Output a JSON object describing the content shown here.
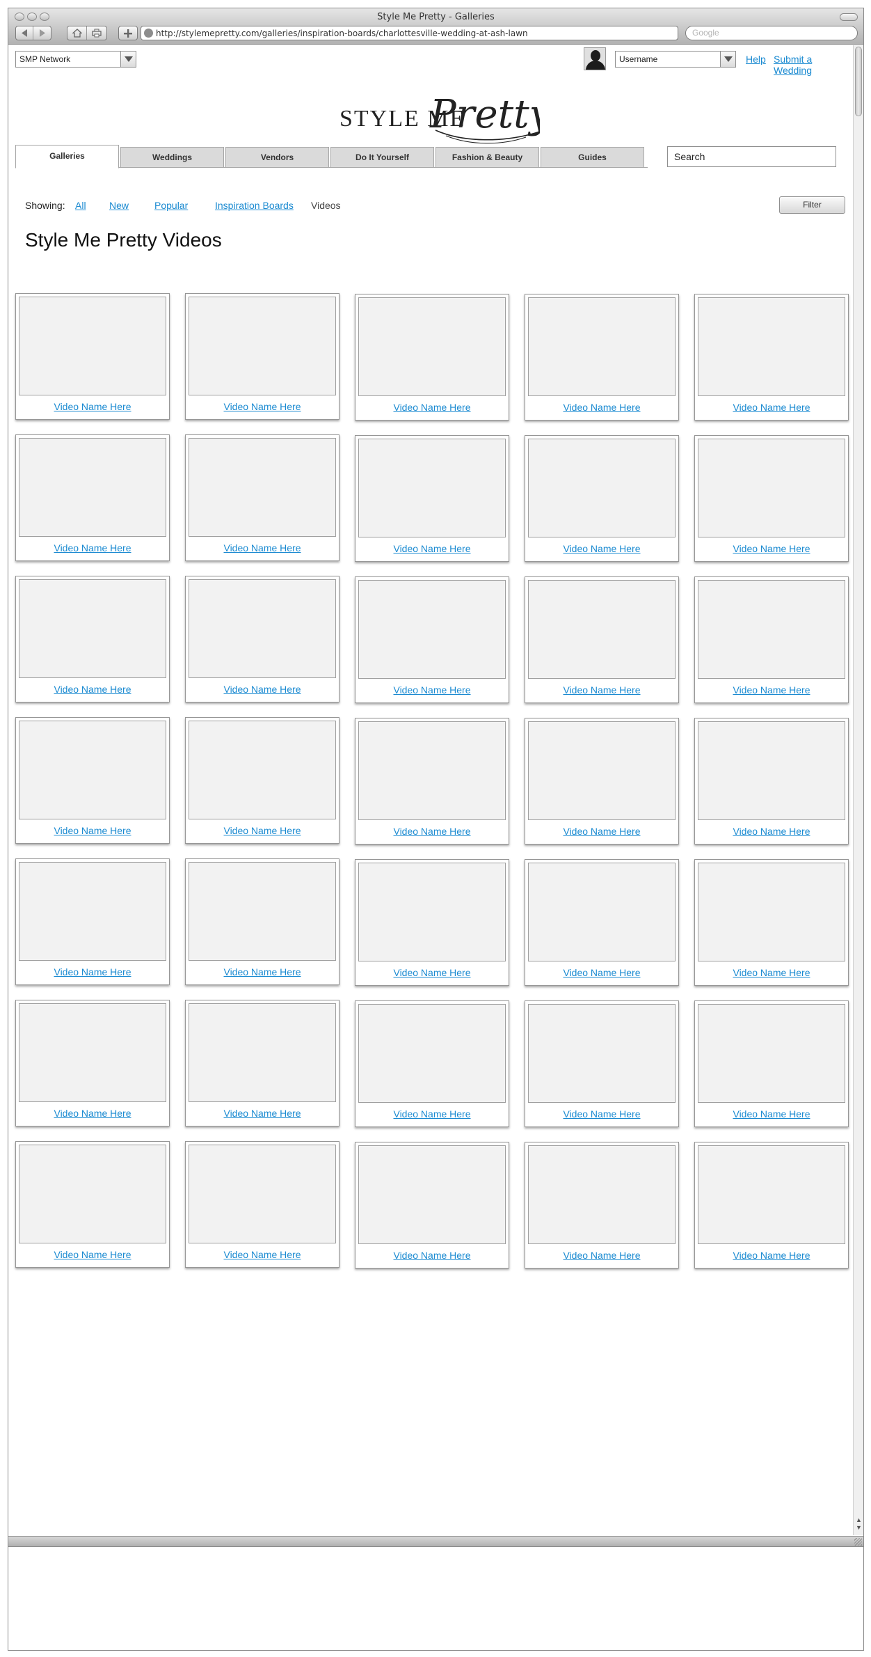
{
  "window": {
    "title": "Style Me Pretty - Galleries"
  },
  "toolbar": {
    "url": "http://stylemepretty.com/galleries/inspiration-boards/charlottesville-wedding-at-ash-lawn",
    "search_placeholder": "Google"
  },
  "header": {
    "network_select": "SMP Network",
    "username_select": "Username",
    "help_link": "Help",
    "submit_link": "Submit a Wedding",
    "logo_left": "STYLE ME",
    "logo_right": "Pretty"
  },
  "nav": {
    "tabs": [
      {
        "label": "Galleries"
      },
      {
        "label": "Weddings"
      },
      {
        "label": "Vendors"
      },
      {
        "label": "Do It Yourself"
      },
      {
        "label": "Fashion & Beauty"
      },
      {
        "label": "Guides"
      }
    ],
    "active_tab": "Galleries",
    "search_value": "Search"
  },
  "filters": {
    "showing_label": "Showing:",
    "items": [
      {
        "label": "All"
      },
      {
        "label": "New"
      },
      {
        "label": "Popular"
      },
      {
        "label": "Inspiration Boards"
      },
      {
        "label": "Videos"
      }
    ],
    "current": "Videos",
    "filter_button": "Filter"
  },
  "main": {
    "title": "Style Me Pretty Videos",
    "video_label": "Video Name Here",
    "rows": 7,
    "columns": 5
  },
  "colors": {
    "link": "#1a8ad1",
    "thumb_fill": "#f2f2f2",
    "tab_inactive": "#dadada"
  }
}
